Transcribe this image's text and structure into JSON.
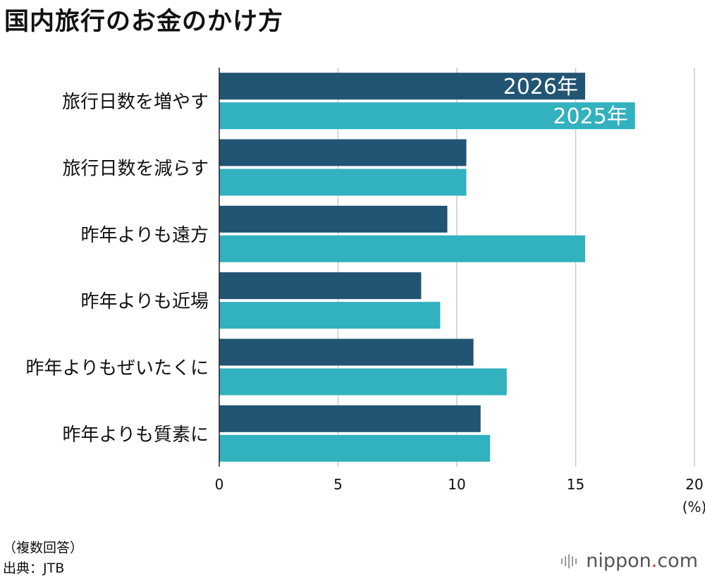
{
  "title": "国内旅行のお金のかけ方",
  "chart_data": {
    "type": "bar",
    "orientation": "horizontal",
    "categories": [
      "旅行日数を増やす",
      "旅行日数を減らす",
      "昨年よりも遠方",
      "昨年よりも近場",
      "昨年よりもぜいたくに",
      "昨年よりも質素に"
    ],
    "series": [
      {
        "name": "2026年",
        "color": "#225473",
        "values": [
          15.4,
          10.4,
          9.6,
          8.5,
          10.7,
          11.0
        ]
      },
      {
        "name": "2025年",
        "color": "#32b1bf",
        "values": [
          17.5,
          10.4,
          15.4,
          9.3,
          12.1,
          11.4
        ]
      }
    ],
    "xlim": [
      0,
      20
    ],
    "xticks": [
      "0",
      "5",
      "10",
      "15",
      "20"
    ],
    "xunit": "(%)",
    "legend": "inside-bars"
  },
  "footer": {
    "note": "（複数回答）",
    "source": "出典：JTB"
  },
  "logo": {
    "brand": "nippon",
    "dot": ".",
    "tld": "com"
  }
}
